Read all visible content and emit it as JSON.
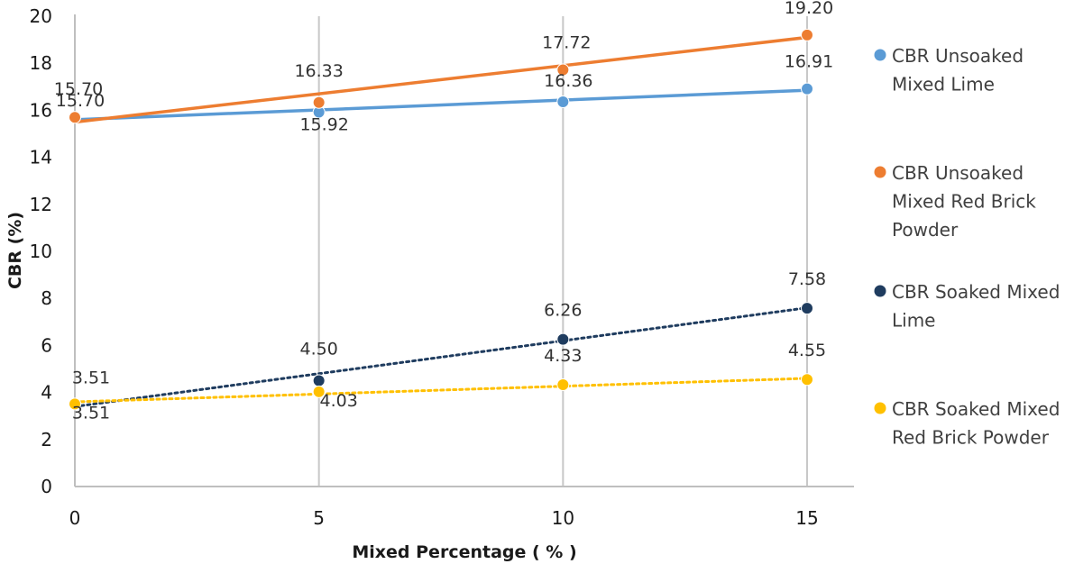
{
  "chart_data": {
    "type": "line",
    "title": "",
    "xlabel": "Mixed Percentage ( % )",
    "ylabel": "CBR (%)",
    "x": [
      0,
      5,
      10,
      15
    ],
    "x_ticks": [
      "0",
      "5",
      "10",
      "15"
    ],
    "y_ticks": [
      "0",
      "2",
      "4",
      "6",
      "8",
      "10",
      "12",
      "14",
      "16",
      "18",
      "20"
    ],
    "ylim": [
      0,
      20
    ],
    "grid": "vertical",
    "legend_position": "right",
    "series": [
      {
        "name": "CBR Unsoaked Mixed Lime",
        "values": [
          15.7,
          15.92,
          16.36,
          16.91
        ],
        "labels": [
          "15.70",
          "15.92",
          "16.36",
          "16.91"
        ],
        "color": "#5b9bd5",
        "trendline": {
          "start": 15.6,
          "end": 16.85,
          "style": "solid"
        }
      },
      {
        "name": "CBR Unsoaked Mixed Red Brick Powder",
        "values": [
          15.7,
          16.33,
          17.72,
          19.2
        ],
        "labels": [
          "15.70",
          "16.33",
          "17.72",
          "19.20"
        ],
        "color": "#ed7d31",
        "trendline": {
          "start": 15.5,
          "end": 19.1,
          "style": "solid"
        }
      },
      {
        "name": "CBR Soaked Mixed Lime",
        "values": [
          3.51,
          4.5,
          6.26,
          7.58
        ],
        "labels": [
          "3.51",
          "4.50",
          "6.26",
          "7.58"
        ],
        "color": "#1f3c5f",
        "trendline": {
          "start": 3.4,
          "end": 7.6,
          "style": "dotted"
        }
      },
      {
        "name": "CBR Soaked Mixed Red Brick Powder",
        "values": [
          3.51,
          4.03,
          4.33,
          4.55
        ],
        "labels": [
          "3.51",
          "4.03",
          "4.33",
          "4.55"
        ],
        "color": "#ffc000",
        "trendline": {
          "start": 3.6,
          "end": 4.6,
          "style": "dotted"
        }
      }
    ],
    "legend": [
      {
        "line1": "CBR Unsoaked",
        "line2": "Mixed Lime",
        "line3": ""
      },
      {
        "line1": "CBR Unsoaked",
        "line2": "Mixed Red Brick",
        "line3": "Powder"
      },
      {
        "line1": "CBR Soaked Mixed",
        "line2": "Lime",
        "line3": ""
      },
      {
        "line1": "CBR Soaked Mixed",
        "line2": "Red Brick Powder",
        "line3": ""
      }
    ]
  }
}
